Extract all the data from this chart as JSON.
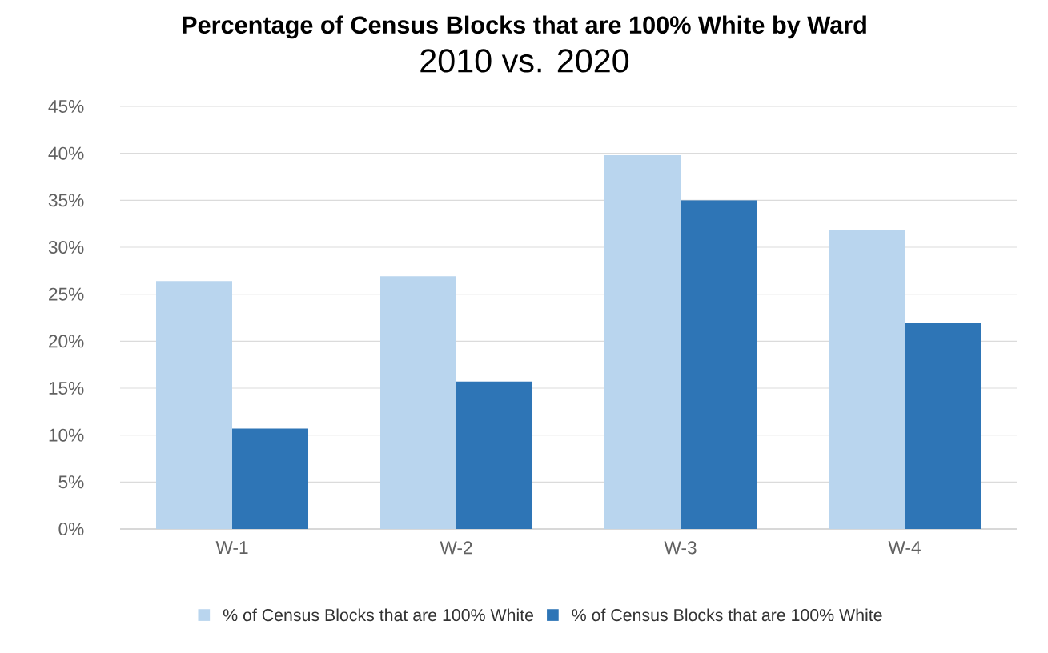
{
  "chart_data": {
    "type": "bar",
    "title": "Percentage of Census Blocks that are 100% White by Ward",
    "subtitle": "2010 vs. 2020",
    "categories": [
      "W-1",
      "W-2",
      "W-3",
      "W-4"
    ],
    "series": [
      {
        "name": "% of Census Blocks that are 100% White",
        "color": "#b9d5ee",
        "values": [
          26.4,
          26.9,
          39.8,
          31.8
        ]
      },
      {
        "name": "% of Census Blocks that are 100% White",
        "color": "#2e75b6",
        "values": [
          10.7,
          15.7,
          35.0,
          21.9
        ]
      }
    ],
    "ylim": [
      0,
      45
    ],
    "yticks": [
      {
        "value": 0,
        "label": "0%"
      },
      {
        "value": 5,
        "label": "5%"
      },
      {
        "value": 10,
        "label": "10%"
      },
      {
        "value": 15,
        "label": "15%"
      },
      {
        "value": 20,
        "label": "20%"
      },
      {
        "value": 25,
        "label": "25%"
      },
      {
        "value": 30,
        "label": "30%"
      },
      {
        "value": 35,
        "label": "35%"
      },
      {
        "value": 40,
        "label": "40%"
      },
      {
        "value": 45,
        "label": "45%"
      }
    ],
    "grid": "y",
    "legend": "bottom"
  }
}
